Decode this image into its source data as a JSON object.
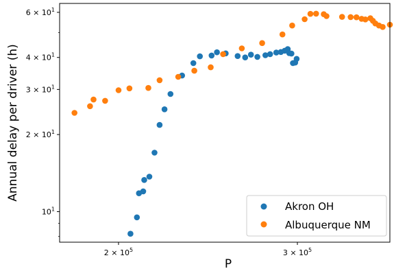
{
  "chart_data": {
    "type": "scatter",
    "xscale": "log",
    "yscale": "log",
    "xlim": [
      175000,
      370000
    ],
    "ylim": [
      7.6,
      65
    ],
    "xlabel": "P",
    "ylabel": "Annual delay per driver (h)",
    "x_ticks": [
      {
        "value": 200000,
        "label": "2 × 10^5"
      },
      {
        "value": 300000,
        "label": "3 × 10^5"
      }
    ],
    "y_ticks": [
      {
        "value": 10,
        "label": "10^1"
      },
      {
        "value": 20,
        "label": "2 × 10^1"
      },
      {
        "value": 30,
        "label": "3 × 10^1"
      },
      {
        "value": 40,
        "label": "4 × 10^1"
      },
      {
        "value": 60,
        "label": "6 × 10^1"
      }
    ],
    "grid": false,
    "legend_position": "lower-right",
    "series": [
      {
        "name": "Akron OH",
        "color": "#1f77b4",
        "points": [
          [
            205500,
            8.2
          ],
          [
            208500,
            9.5
          ],
          [
            209500,
            11.8
          ],
          [
            211500,
            12.0
          ],
          [
            212000,
            13.3
          ],
          [
            214500,
            13.7
          ],
          [
            217000,
            17.0
          ],
          [
            219500,
            21.8
          ],
          [
            222000,
            25.1
          ],
          [
            225000,
            28.8
          ],
          [
            231000,
            34.0
          ],
          [
            237000,
            38.0
          ],
          [
            240500,
            40.4
          ],
          [
            247000,
            40.7
          ],
          [
            250000,
            41.9
          ],
          [
            255000,
            41.5
          ],
          [
            262000,
            40.5
          ],
          [
            266500,
            40.0
          ],
          [
            270000,
            41.0
          ],
          [
            274000,
            40.2
          ],
          [
            279000,
            40.8
          ],
          [
            282000,
            41.2
          ],
          [
            286000,
            41.8
          ],
          [
            289000,
            42.0
          ],
          [
            291500,
            42.5
          ],
          [
            293500,
            43.1
          ],
          [
            294500,
            41.6
          ],
          [
            296000,
            41.4
          ],
          [
            297000,
            38.0
          ],
          [
            298500,
            38.2
          ],
          [
            299500,
            39.5
          ]
        ]
      },
      {
        "name": "Albuquerque NM",
        "color": "#ff7f0e",
        "points": [
          [
            181000,
            24.3
          ],
          [
            187500,
            25.8
          ],
          [
            189000,
            27.4
          ],
          [
            194000,
            27.1
          ],
          [
            200000,
            29.8
          ],
          [
            205000,
            30.3
          ],
          [
            214000,
            30.4
          ],
          [
            219500,
            32.6
          ],
          [
            229000,
            33.6
          ],
          [
            237500,
            35.5
          ],
          [
            246500,
            36.6
          ],
          [
            253500,
            41.2
          ],
          [
            264500,
            43.4
          ],
          [
            277000,
            45.5
          ],
          [
            290000,
            49.2
          ],
          [
            296500,
            53.3
          ],
          [
            305000,
            56.4
          ],
          [
            309000,
            59.2
          ],
          [
            313000,
            59.3
          ],
          [
            318500,
            59.0
          ],
          [
            320500,
            58.0
          ],
          [
            332000,
            57.6
          ],
          [
            338500,
            57.5
          ],
          [
            343000,
            57.4
          ],
          [
            347000,
            56.6
          ],
          [
            350000,
            56.3
          ],
          [
            354000,
            56.9
          ],
          [
            356000,
            55.6
          ],
          [
            358000,
            54.3
          ],
          [
            361000,
            53.3
          ],
          [
            364000,
            52.6
          ],
          [
            370000,
            53.7
          ]
        ]
      }
    ]
  }
}
